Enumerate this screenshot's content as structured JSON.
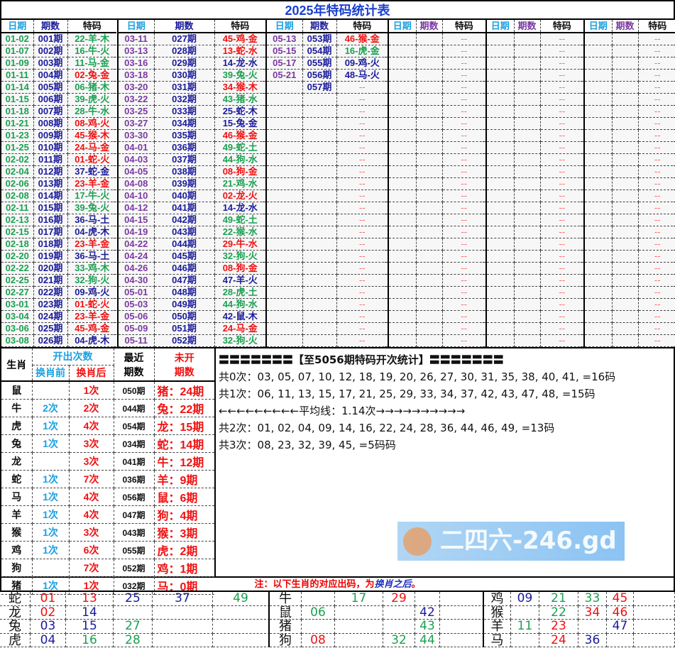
{
  "title": "2025年特码统计表",
  "headers": {
    "date": "日期",
    "period": "期数",
    "code": "特码"
  },
  "empty_code": "--",
  "colors": {
    "red": "#f01010",
    "blue": "#1a1a9a",
    "green": "#1aa050",
    "cyan": "#1aa0e0",
    "purple": "#7a3aa0",
    "title": "#1a3fd0"
  },
  "groups": [
    {
      "rows": [
        [
          "01-02",
          "001期",
          "22-羊-木"
        ],
        [
          "01-07",
          "002期",
          "16-牛-火"
        ],
        [
          "01-09",
          "003期",
          "11-马-金"
        ],
        [
          "01-11",
          "004期",
          "02-兔-金"
        ],
        [
          "01-14",
          "005期",
          "06-猪-木"
        ],
        [
          "01-15",
          "006期",
          "39-虎-火"
        ],
        [
          "01-18",
          "007期",
          "28-牛-水"
        ],
        [
          "01-21",
          "008期",
          "08-鸡-火"
        ],
        [
          "01-23",
          "009期",
          "45-猴-木"
        ],
        [
          "01-25",
          "010期",
          "24-马-金"
        ],
        [
          "02-02",
          "011期",
          "01-蛇-火"
        ],
        [
          "02-04",
          "012期",
          "37-蛇-金"
        ],
        [
          "02-06",
          "013期",
          "23-羊-金"
        ],
        [
          "02-08",
          "014期",
          "17-牛-火"
        ],
        [
          "02-11",
          "015期",
          "39-兔-火"
        ],
        [
          "02-13",
          "016期",
          "36-马-土"
        ],
        [
          "02-15",
          "017期",
          "04-虎-木"
        ],
        [
          "02-18",
          "018期",
          "23-羊-金"
        ],
        [
          "02-20",
          "019期",
          "36-马-土"
        ],
        [
          "02-22",
          "020期",
          "33-鸡-木"
        ],
        [
          "02-25",
          "021期",
          "32-狗-火"
        ],
        [
          "02-27",
          "022期",
          "09-鸡-火"
        ],
        [
          "03-01",
          "023期",
          "01-蛇-火"
        ],
        [
          "03-04",
          "024期",
          "23-羊-金"
        ],
        [
          "03-06",
          "025期",
          "45-鸡-金"
        ],
        [
          "03-08",
          "026期",
          "04-虎-木"
        ]
      ]
    },
    {
      "rows": [
        [
          "03-11",
          "027期",
          "45-鸡-金"
        ],
        [
          "03-13",
          "028期",
          "13-蛇-水"
        ],
        [
          "03-16",
          "029期",
          "14-龙-水"
        ],
        [
          "03-18",
          "030期",
          "39-兔-火"
        ],
        [
          "03-20",
          "031期",
          "34-猴-木"
        ],
        [
          "03-22",
          "032期",
          "43-猪-水"
        ],
        [
          "03-25",
          "033期",
          "25-蛇-木"
        ],
        [
          "03-27",
          "034期",
          "15-兔-金"
        ],
        [
          "03-30",
          "035期",
          "46-猴-金"
        ],
        [
          "04-01",
          "036期",
          "49-蛇-土"
        ],
        [
          "04-03",
          "037期",
          "44-狗-水"
        ],
        [
          "04-05",
          "038期",
          "08-狗-金"
        ],
        [
          "04-08",
          "039期",
          "21-鸡-水"
        ],
        [
          "04-10",
          "040期",
          "02-龙-火"
        ],
        [
          "04-12",
          "041期",
          "14-龙-水"
        ],
        [
          "04-15",
          "042期",
          "49-蛇-土"
        ],
        [
          "04-19",
          "043期",
          "22-猴-水"
        ],
        [
          "04-22",
          "044期",
          "29-牛-水"
        ],
        [
          "04-24",
          "045期",
          "32-狗-火"
        ],
        [
          "04-26",
          "046期",
          "08-狗-金"
        ],
        [
          "04-30",
          "047期",
          "47-羊-火"
        ],
        [
          "05-01",
          "048期",
          "28-虎-土"
        ],
        [
          "05-03",
          "049期",
          "44-狗-水"
        ],
        [
          "05-06",
          "050期",
          "42-鼠-木"
        ],
        [
          "05-09",
          "051期",
          "24-马-金"
        ],
        [
          "05-11",
          "052期",
          "32-狗-火"
        ]
      ]
    },
    {
      "rows": [
        [
          "05-13",
          "053期",
          "46-猴-金"
        ],
        [
          "05-15",
          "054期",
          "16-虎-金"
        ],
        [
          "05-17",
          "055期",
          "09-鸡-火"
        ],
        [
          "05-21",
          "056期",
          "48-马-火"
        ],
        [
          "",
          "057期",
          ""
        ]
      ]
    },
    {
      "rows": []
    },
    {
      "rows": []
    },
    {
      "rows": []
    }
  ],
  "stats": {
    "header": {
      "zodiac": "生肖",
      "count": "开出次数",
      "before": "换肖前",
      "after": "换肖后",
      "recent": "最近期数",
      "missing": "未开期数"
    },
    "rows": [
      [
        "鼠",
        "",
        "1次",
        "050期",
        "猪：24期"
      ],
      [
        "牛",
        "2次",
        "2次",
        "044期",
        "兔：22期"
      ],
      [
        "虎",
        "1次",
        "4次",
        "054期",
        "龙：15期"
      ],
      [
        "兔",
        "1次",
        "3次",
        "034期",
        "蛇：14期"
      ],
      [
        "龙",
        "",
        "3次",
        "041期",
        "牛：12期"
      ],
      [
        "蛇",
        "1次",
        "7次",
        "036期",
        "羊：9期"
      ],
      [
        "马",
        "1次",
        "4次",
        "056期",
        "鼠：6期"
      ],
      [
        "羊",
        "1次",
        "4次",
        "047期",
        "狗：4期"
      ],
      [
        "猴",
        "1次",
        "3次",
        "043期",
        "猴：3期"
      ],
      [
        "鸡",
        "1次",
        "6次",
        "055期",
        "虎：2期"
      ],
      [
        "狗",
        "",
        "7次",
        "052期",
        "鸡：1期"
      ],
      [
        "猪",
        "1次",
        "1次",
        "032期",
        "马：0期"
      ]
    ]
  },
  "summary": [
    "〓〓〓〓〓〓〓【至5056期特码开次统计】〓〓〓〓〓〓〓",
    "共0次：03, 05, 07, 10, 12, 18, 19, 20, 26, 27, 30, 31, 35, 38, 40, 41, =16码",
    "共1次：06, 11, 13, 15, 17, 21, 25, 29, 33, 34, 37, 42, 43, 47, 48, =15码",
    "←←←←←←←←←平均线：1.14次→→→→→→→→→→",
    "共2次：01, 02, 04, 09, 14, 16, 22, 24, 28, 36, 44, 46, 49, =13码",
    "共3次：08, 23, 32, 39, 45, =5码码"
  ],
  "note": {
    "prefix": "注：以下生肖的对应出码，为",
    "emph": "换肖之后",
    "suffix": "。"
  },
  "bottom": [
    {
      "labels": [
        "蛇",
        "牛",
        "鸡"
      ],
      "cells": [
        [
          "01",
          "13",
          "25",
          "37",
          "49"
        ],
        [
          "",
          "17",
          "29",
          "",
          ""
        ],
        [
          "09",
          "21",
          "33",
          "45",
          ""
        ]
      ]
    },
    {
      "labels": [
        "龙",
        "鼠",
        "猴"
      ],
      "cells": [
        [
          "02",
          "14",
          "",
          "",
          ""
        ],
        [
          "06",
          "",
          "",
          "42",
          ""
        ],
        [
          "",
          "22",
          "34",
          "46",
          ""
        ]
      ]
    },
    {
      "labels": [
        "兔",
        "猪",
        "羊"
      ],
      "cells": [
        [
          "03",
          "15",
          "27",
          "",
          ""
        ],
        [
          "",
          "",
          "",
          "43",
          ""
        ],
        [
          "11",
          "23",
          "",
          "47",
          ""
        ]
      ]
    },
    {
      "labels": [
        "虎",
        "狗",
        "马"
      ],
      "cells": [
        [
          "04",
          "16",
          "28",
          "",
          ""
        ],
        [
          "08",
          "",
          "32",
          "44",
          ""
        ],
        [
          "",
          "24",
          "36",
          "",
          ""
        ]
      ]
    }
  ],
  "watermark": "二四六-246.gd"
}
